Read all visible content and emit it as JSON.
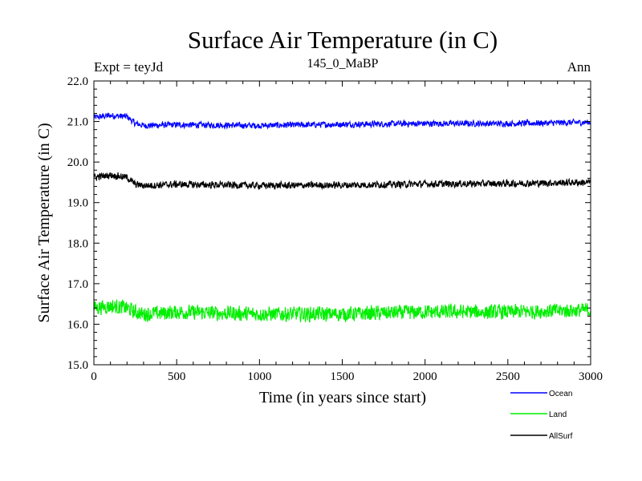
{
  "chart_data": {
    "type": "line",
    "title": "Surface Air Temperature (in C)",
    "subtitle": "145_0_MaBP",
    "left_label": "Expt = teyJd",
    "right_label": "Ann",
    "xlabel": "Time (in years since start)",
    "ylabel": "Surface Air Temperature (in C)",
    "xlim": [
      0,
      3000
    ],
    "ylim": [
      15.0,
      22.0
    ],
    "x_ticks": [
      0,
      500,
      1000,
      1500,
      2000,
      2500,
      3000
    ],
    "x_tick_labels": [
      "0",
      "500",
      "1000",
      "1500",
      "2000",
      "2500",
      "3000"
    ],
    "y_ticks": [
      15,
      16,
      17,
      18,
      19,
      20,
      21,
      22
    ],
    "y_tick_labels": [
      "15.0",
      "16.0",
      "17.0",
      "18.0",
      "19.0",
      "20.0",
      "21.0",
      "22.0"
    ],
    "legend_placement": "bottom-right, below plot",
    "series": [
      {
        "name": "Ocean",
        "color": "#0000ff",
        "x": [
          0,
          100,
          200,
          250,
          300,
          500,
          1000,
          1500,
          2000,
          2500,
          3000
        ],
        "values": [
          21.1,
          21.15,
          21.12,
          20.95,
          20.9,
          20.92,
          20.9,
          20.93,
          20.95,
          20.95,
          20.98
        ],
        "noise": 0.07
      },
      {
        "name": "Land",
        "color": "#00ee00",
        "x": [
          0,
          100,
          200,
          250,
          300,
          500,
          1000,
          1500,
          2000,
          2500,
          3000
        ],
        "values": [
          16.4,
          16.45,
          16.4,
          16.3,
          16.25,
          16.3,
          16.25,
          16.25,
          16.3,
          16.3,
          16.35
        ],
        "noise": 0.17
      },
      {
        "name": "AllSurf",
        "color": "#000000",
        "x": [
          0,
          100,
          200,
          250,
          300,
          500,
          1000,
          1500,
          2000,
          2500,
          3000
        ],
        "values": [
          19.62,
          19.68,
          19.62,
          19.45,
          19.42,
          19.45,
          19.42,
          19.43,
          19.46,
          19.47,
          19.5
        ],
        "noise": 0.08
      }
    ]
  }
}
